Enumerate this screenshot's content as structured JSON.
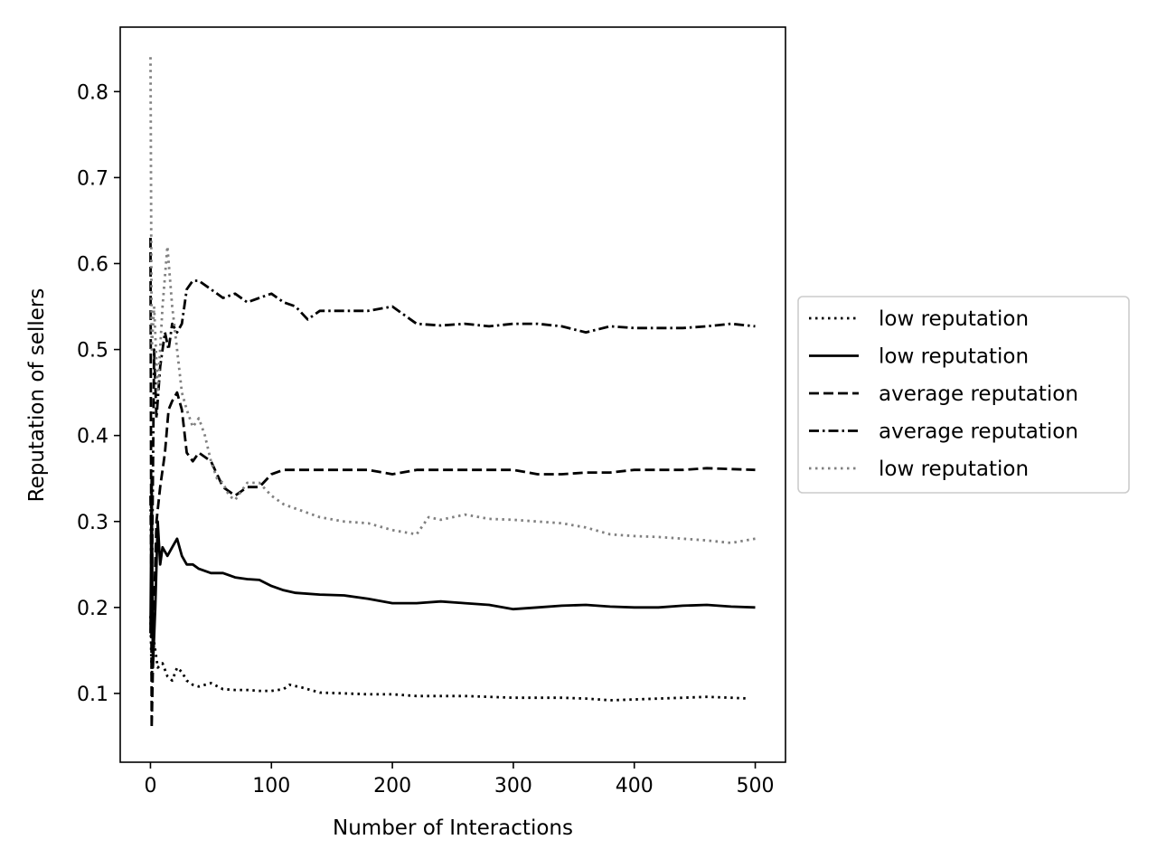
{
  "chart_data": {
    "type": "line",
    "title": "",
    "xlabel": "Number of Interactions",
    "ylabel": "Reputation of sellers",
    "xlim": [
      -25,
      525
    ],
    "ylim": [
      0.02,
      0.875
    ],
    "xticks": [
      0,
      100,
      200,
      300,
      400,
      500
    ],
    "yticks": [
      0.1,
      0.2,
      0.3,
      0.4,
      0.5,
      0.6,
      0.7,
      0.8
    ],
    "grid": false,
    "legend_position": "right-outside",
    "series": [
      {
        "name": "low reputation",
        "style": "dotted",
        "color": "#000000",
        "points": [
          [
            0,
            0.19
          ],
          [
            1,
            0.12
          ],
          [
            3,
            0.16
          ],
          [
            6,
            0.13
          ],
          [
            10,
            0.135
          ],
          [
            14,
            0.12
          ],
          [
            18,
            0.115
          ],
          [
            22,
            0.13
          ],
          [
            26,
            0.125
          ],
          [
            30,
            0.115
          ],
          [
            35,
            0.11
          ],
          [
            40,
            0.108
          ],
          [
            50,
            0.112
          ],
          [
            60,
            0.105
          ],
          [
            70,
            0.104
          ],
          [
            80,
            0.104
          ],
          [
            90,
            0.103
          ],
          [
            100,
            0.103
          ],
          [
            110,
            0.105
          ],
          [
            115,
            0.11
          ],
          [
            125,
            0.107
          ],
          [
            140,
            0.101
          ],
          [
            160,
            0.1
          ],
          [
            180,
            0.099
          ],
          [
            200,
            0.099
          ],
          [
            220,
            0.097
          ],
          [
            240,
            0.097
          ],
          [
            260,
            0.097
          ],
          [
            280,
            0.096
          ],
          [
            300,
            0.095
          ],
          [
            320,
            0.095
          ],
          [
            340,
            0.095
          ],
          [
            360,
            0.094
          ],
          [
            380,
            0.092
          ],
          [
            400,
            0.093
          ],
          [
            420,
            0.094
          ],
          [
            440,
            0.095
          ],
          [
            460,
            0.096
          ],
          [
            480,
            0.095
          ],
          [
            495,
            0.094
          ]
        ]
      },
      {
        "name": "low reputation",
        "style": "solid",
        "color": "#000000",
        "points": [
          [
            0,
            0.17
          ],
          [
            1,
            0.35
          ],
          [
            2,
            0.13
          ],
          [
            4,
            0.2
          ],
          [
            6,
            0.3
          ],
          [
            8,
            0.25
          ],
          [
            10,
            0.27
          ],
          [
            14,
            0.26
          ],
          [
            18,
            0.27
          ],
          [
            22,
            0.28
          ],
          [
            26,
            0.26
          ],
          [
            30,
            0.25
          ],
          [
            35,
            0.25
          ],
          [
            40,
            0.245
          ],
          [
            50,
            0.24
          ],
          [
            60,
            0.24
          ],
          [
            70,
            0.235
          ],
          [
            80,
            0.233
          ],
          [
            90,
            0.232
          ],
          [
            100,
            0.225
          ],
          [
            110,
            0.22
          ],
          [
            120,
            0.217
          ],
          [
            140,
            0.215
          ],
          [
            160,
            0.214
          ],
          [
            180,
            0.21
          ],
          [
            200,
            0.205
          ],
          [
            220,
            0.205
          ],
          [
            240,
            0.207
          ],
          [
            260,
            0.205
          ],
          [
            280,
            0.203
          ],
          [
            300,
            0.198
          ],
          [
            320,
            0.2
          ],
          [
            340,
            0.202
          ],
          [
            360,
            0.203
          ],
          [
            380,
            0.201
          ],
          [
            400,
            0.2
          ],
          [
            420,
            0.2
          ],
          [
            440,
            0.202
          ],
          [
            460,
            0.203
          ],
          [
            480,
            0.201
          ],
          [
            500,
            0.2
          ]
        ]
      },
      {
        "name": "average reputation",
        "style": "dashed",
        "color": "#000000",
        "points": [
          [
            0,
            0.63
          ],
          [
            1,
            0.06
          ],
          [
            3,
            0.2
          ],
          [
            5,
            0.3
          ],
          [
            8,
            0.34
          ],
          [
            12,
            0.38
          ],
          [
            15,
            0.43
          ],
          [
            18,
            0.44
          ],
          [
            22,
            0.45
          ],
          [
            26,
            0.43
          ],
          [
            30,
            0.38
          ],
          [
            35,
            0.37
          ],
          [
            40,
            0.38
          ],
          [
            50,
            0.37
          ],
          [
            60,
            0.34
          ],
          [
            70,
            0.33
          ],
          [
            80,
            0.34
          ],
          [
            90,
            0.34
          ],
          [
            100,
            0.355
          ],
          [
            110,
            0.36
          ],
          [
            120,
            0.36
          ],
          [
            140,
            0.36
          ],
          [
            160,
            0.36
          ],
          [
            180,
            0.36
          ],
          [
            200,
            0.355
          ],
          [
            220,
            0.36
          ],
          [
            240,
            0.36
          ],
          [
            260,
            0.36
          ],
          [
            280,
            0.36
          ],
          [
            300,
            0.36
          ],
          [
            320,
            0.355
          ],
          [
            340,
            0.355
          ],
          [
            360,
            0.357
          ],
          [
            380,
            0.357
          ],
          [
            400,
            0.36
          ],
          [
            420,
            0.36
          ],
          [
            440,
            0.36
          ],
          [
            460,
            0.362
          ],
          [
            480,
            0.361
          ],
          [
            500,
            0.36
          ]
        ]
      },
      {
        "name": "average reputation",
        "style": "dashdot",
        "color": "#000000",
        "points": [
          [
            0,
            0.33
          ],
          [
            1,
            0.2
          ],
          [
            3,
            0.5
          ],
          [
            5,
            0.42
          ],
          [
            8,
            0.48
          ],
          [
            12,
            0.52
          ],
          [
            15,
            0.5
          ],
          [
            18,
            0.53
          ],
          [
            22,
            0.52
          ],
          [
            26,
            0.53
          ],
          [
            30,
            0.57
          ],
          [
            35,
            0.58
          ],
          [
            40,
            0.58
          ],
          [
            50,
            0.57
          ],
          [
            60,
            0.56
          ],
          [
            70,
            0.565
          ],
          [
            80,
            0.555
          ],
          [
            90,
            0.56
          ],
          [
            100,
            0.565
          ],
          [
            110,
            0.555
          ],
          [
            120,
            0.55
          ],
          [
            130,
            0.535
          ],
          [
            140,
            0.545
          ],
          [
            160,
            0.545
          ],
          [
            180,
            0.545
          ],
          [
            200,
            0.55
          ],
          [
            220,
            0.53
          ],
          [
            240,
            0.528
          ],
          [
            260,
            0.53
          ],
          [
            280,
            0.527
          ],
          [
            300,
            0.53
          ],
          [
            320,
            0.53
          ],
          [
            340,
            0.527
          ],
          [
            360,
            0.52
          ],
          [
            380,
            0.527
          ],
          [
            400,
            0.525
          ],
          [
            420,
            0.525
          ],
          [
            440,
            0.525
          ],
          [
            460,
            0.527
          ],
          [
            480,
            0.53
          ],
          [
            500,
            0.527
          ]
        ]
      },
      {
        "name": "low reputation",
        "style": "dotted",
        "color": "#808080",
        "points": [
          [
            0,
            0.84
          ],
          [
            1,
            0.5
          ],
          [
            3,
            0.55
          ],
          [
            6,
            0.45
          ],
          [
            10,
            0.55
          ],
          [
            14,
            0.62
          ],
          [
            18,
            0.55
          ],
          [
            22,
            0.5
          ],
          [
            26,
            0.45
          ],
          [
            30,
            0.43
          ],
          [
            35,
            0.41
          ],
          [
            40,
            0.42
          ],
          [
            45,
            0.4
          ],
          [
            50,
            0.37
          ],
          [
            55,
            0.35
          ],
          [
            60,
            0.345
          ],
          [
            65,
            0.33
          ],
          [
            70,
            0.325
          ],
          [
            80,
            0.345
          ],
          [
            90,
            0.345
          ],
          [
            100,
            0.33
          ],
          [
            110,
            0.32
          ],
          [
            120,
            0.315
          ],
          [
            140,
            0.305
          ],
          [
            160,
            0.3
          ],
          [
            180,
            0.298
          ],
          [
            200,
            0.29
          ],
          [
            220,
            0.285
          ],
          [
            230,
            0.305
          ],
          [
            240,
            0.302
          ],
          [
            260,
            0.308
          ],
          [
            280,
            0.303
          ],
          [
            300,
            0.302
          ],
          [
            320,
            0.3
          ],
          [
            340,
            0.298
          ],
          [
            360,
            0.293
          ],
          [
            380,
            0.285
          ],
          [
            400,
            0.283
          ],
          [
            420,
            0.282
          ],
          [
            440,
            0.28
          ],
          [
            460,
            0.278
          ],
          [
            480,
            0.275
          ],
          [
            500,
            0.28
          ]
        ]
      }
    ]
  }
}
